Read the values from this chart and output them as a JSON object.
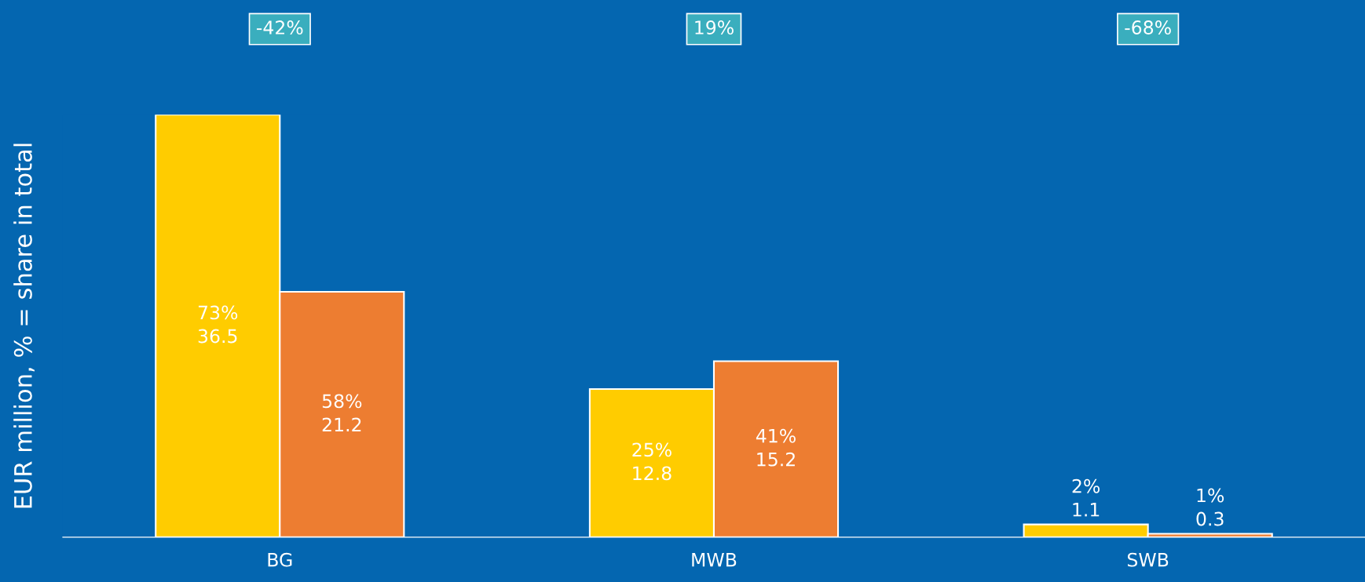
{
  "chart_data": {
    "type": "bar",
    "ylabel": "EUR million, % = share in total",
    "categories": [
      "BG",
      "MWB",
      "SWB"
    ],
    "series": [
      {
        "color": "#ffcc00",
        "values": [
          36.5,
          12.8,
          1.1
        ],
        "value_labels": [
          "73%\n36.5",
          "25%\n12.8",
          "2%\n1.1"
        ]
      },
      {
        "color": "#ed7d31",
        "values": [
          21.2,
          15.2,
          0.3
        ],
        "value_labels": [
          "58%\n21.2",
          "41%\n15.2",
          "1%\n0.3"
        ]
      }
    ],
    "annotations": [
      "-42%",
      "19%",
      "-68%"
    ],
    "tick_labels": "x",
    "grid": false,
    "legend": false
  }
}
